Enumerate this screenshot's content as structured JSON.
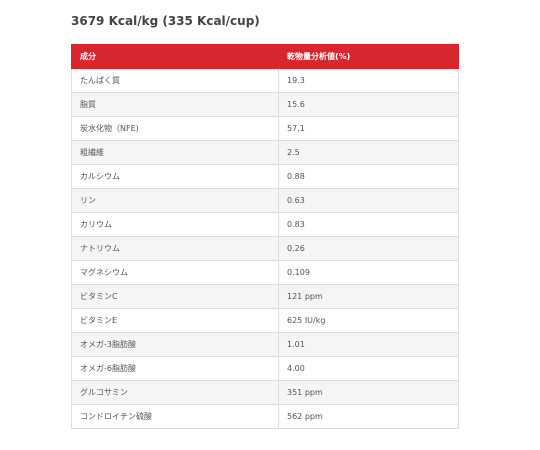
{
  "heading": "3679 Kcal/kg (335 Kcal/cup)",
  "table": {
    "header": {
      "col1": "成分",
      "col2": "乾物量分析値(%)"
    },
    "header_color": "#d8262e",
    "rows": [
      {
        "name": "たんぱく質",
        "value": "19.3"
      },
      {
        "name": "脂質",
        "value": "15.6"
      },
      {
        "name": "炭水化物（NFE)",
        "value": "57.1"
      },
      {
        "name": "粗繊維",
        "value": "2.5"
      },
      {
        "name": "カルシウム",
        "value": "0.88"
      },
      {
        "name": "リン",
        "value": "0.63"
      },
      {
        "name": "カリウム",
        "value": "0.83"
      },
      {
        "name": "ナトリウム",
        "value": "0.26"
      },
      {
        "name": "マグネシウム",
        "value": "0.109"
      },
      {
        "name": "ビタミンC",
        "value": "121 ppm"
      },
      {
        "name": "ビタミンE",
        "value": "625 IU/kg"
      },
      {
        "name": "オメガ-3脂肪酸",
        "value": "1.01"
      },
      {
        "name": "オメガ-6脂肪酸",
        "value": "4.00"
      },
      {
        "name": "グルコサミン",
        "value": "351 ppm"
      },
      {
        "name": "コンドロイチン硫酸",
        "value": "562 ppm"
      }
    ]
  }
}
